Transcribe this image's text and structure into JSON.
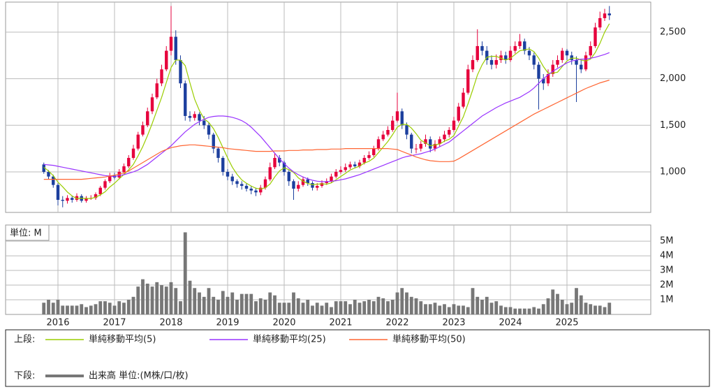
{
  "chart_data": [
    {
      "type": "candlestick",
      "categories": [
        null,
        null,
        null,
        "2016",
        null,
        null,
        null,
        null,
        null,
        null,
        null,
        null,
        null,
        null,
        null,
        "2017",
        null,
        null,
        null,
        null,
        null,
        null,
        null,
        null,
        null,
        null,
        null,
        "2018",
        null,
        null,
        null,
        null,
        null,
        null,
        null,
        null,
        null,
        null,
        null,
        "2019",
        null,
        null,
        null,
        null,
        null,
        null,
        null,
        null,
        null,
        null,
        null,
        "2020",
        null,
        null,
        null,
        null,
        null,
        null,
        null,
        null,
        null,
        null,
        null,
        "2021",
        null,
        null,
        null,
        null,
        null,
        null,
        null,
        null,
        null,
        null,
        null,
        "2022",
        null,
        null,
        null,
        null,
        null,
        null,
        null,
        null,
        null,
        null,
        null,
        "2023",
        null,
        null,
        null,
        null,
        null,
        null,
        null,
        null,
        null,
        null,
        null,
        "2024",
        null,
        null,
        null,
        null,
        null,
        null,
        null,
        null,
        null,
        null,
        null,
        "2025",
        null,
        null,
        null,
        null,
        null,
        null,
        null,
        null,
        null
      ],
      "open": [
        1080,
        1000,
        950,
        860,
        700,
        690,
        720,
        700,
        740,
        690,
        720,
        720,
        760,
        830,
        900,
        960,
        940,
        1000,
        1060,
        1150,
        1250,
        1400,
        1500,
        1650,
        1800,
        1950,
        2100,
        2300,
        2450,
        2200,
        1950,
        1600,
        1580,
        1620,
        1550,
        1500,
        1400,
        1250,
        1150,
        1000,
        950,
        900,
        870,
        850,
        820,
        800,
        780,
        830,
        920,
        1050,
        1150,
        1100,
        1000,
        900,
        820,
        860,
        920,
        880,
        830,
        850,
        880,
        900,
        950,
        1000,
        1020,
        1050,
        1080,
        1060,
        1100,
        1150,
        1180,
        1250,
        1350,
        1400,
        1450,
        1550,
        1650,
        1500,
        1400,
        1250,
        1250,
        1300,
        1350,
        1250,
        1300,
        1350,
        1400,
        1450,
        1550,
        1700,
        1850,
        2100,
        2200,
        2350,
        2300,
        2200,
        2150,
        2200,
        2250,
        2200,
        2300,
        2350,
        2400,
        2300,
        2250,
        2150,
        2000,
        1950,
        2050,
        2150,
        2200,
        2300,
        2250,
        2200,
        2150,
        2100,
        2250,
        2350,
        2550,
        2650,
        2700
      ],
      "high": [
        1100,
        1020,
        970,
        880,
        740,
        750,
        740,
        770,
        760,
        740,
        750,
        780,
        850,
        920,
        990,
        990,
        1030,
        1090,
        1180,
        1290,
        1430,
        1540,
        1690,
        1840,
        2000,
        2150,
        2350,
        2780,
        2520,
        2250,
        1980,
        1650,
        1650,
        1640,
        1600,
        1530,
        1420,
        1270,
        1170,
        1030,
        980,
        920,
        900,
        880,
        850,
        830,
        860,
        950,
        1100,
        1200,
        1180,
        1120,
        1020,
        920,
        900,
        950,
        940,
        900,
        880,
        910,
        930,
        980,
        1030,
        1060,
        1090,
        1110,
        1110,
        1130,
        1180,
        1220,
        1280,
        1380,
        1440,
        1490,
        1600,
        1850,
        1680,
        1530,
        1420,
        1300,
        1330,
        1400,
        1380,
        1340,
        1380,
        1440,
        1480,
        1590,
        1740,
        1900,
        2150,
        2250,
        2530,
        2400,
        2350,
        2250,
        2260,
        2300,
        2290,
        2350,
        2400,
        2480,
        2430,
        2340,
        2280,
        2180,
        2050,
        2100,
        2200,
        2250,
        2330,
        2320,
        2290,
        2240,
        2200,
        2290,
        2400,
        2600,
        2720,
        2750,
        2780
      ],
      "low": [
        980,
        920,
        830,
        640,
        620,
        660,
        670,
        680,
        670,
        670,
        700,
        700,
        740,
        810,
        880,
        920,
        920,
        980,
        1040,
        1130,
        1230,
        1380,
        1480,
        1620,
        1780,
        1920,
        2080,
        2250,
        2150,
        1900,
        1550,
        1540,
        1550,
        1500,
        1460,
        1350,
        1200,
        1100,
        960,
        910,
        860,
        830,
        810,
        790,
        760,
        740,
        750,
        810,
        900,
        1030,
        1060,
        960,
        850,
        700,
        790,
        840,
        850,
        800,
        800,
        830,
        860,
        880,
        930,
        980,
        1000,
        1030,
        1040,
        1040,
        1080,
        1130,
        1160,
        1230,
        1330,
        1380,
        1430,
        1530,
        1460,
        1350,
        1200,
        1200,
        1220,
        1270,
        1210,
        1220,
        1270,
        1320,
        1370,
        1430,
        1530,
        1680,
        1830,
        2070,
        2180,
        2250,
        2150,
        2100,
        2110,
        2170,
        2160,
        2180,
        2270,
        2320,
        2260,
        2200,
        2100,
        1670,
        1880,
        1920,
        2020,
        2120,
        2170,
        2200,
        2150,
        1750,
        2060,
        2080,
        2220,
        2330,
        2520,
        2620,
        2630
      ],
      "close": [
        1000,
        950,
        860,
        700,
        690,
        720,
        700,
        740,
        690,
        720,
        720,
        760,
        830,
        900,
        960,
        940,
        1000,
        1060,
        1150,
        1250,
        1400,
        1500,
        1650,
        1800,
        1950,
        2100,
        2300,
        2450,
        2200,
        1950,
        1600,
        1580,
        1620,
        1550,
        1500,
        1400,
        1250,
        1150,
        1000,
        950,
        900,
        870,
        850,
        820,
        800,
        780,
        830,
        920,
        1050,
        1150,
        1100,
        1000,
        900,
        820,
        860,
        920,
        880,
        830,
        850,
        880,
        900,
        950,
        1000,
        1020,
        1050,
        1080,
        1060,
        1100,
        1150,
        1180,
        1250,
        1350,
        1400,
        1450,
        1550,
        1650,
        1500,
        1400,
        1250,
        1250,
        1300,
        1350,
        1250,
        1300,
        1350,
        1400,
        1450,
        1550,
        1700,
        1850,
        2100,
        2200,
        2350,
        2300,
        2200,
        2150,
        2200,
        2250,
        2200,
        2300,
        2350,
        2400,
        2300,
        2250,
        2150,
        2000,
        1950,
        2050,
        2150,
        2200,
        2300,
        2250,
        2200,
        2150,
        2100,
        2250,
        2350,
        2550,
        2650,
        2700,
        2680
      ],
      "up_color": "#e6003c",
      "down_color": "#1c3f9e",
      "legend_group": "上段:",
      "series": [
        {
          "name": "単純移動平均(5)",
          "color": "#9acd00",
          "values": [
            1050,
            1010,
            960,
            890,
            840,
            784,
            742,
            714,
            718,
            714,
            714,
            728,
            754,
            786,
            838,
            878,
            926,
            972,
            1022,
            1080,
            1172,
            1272,
            1390,
            1520,
            1660,
            1800,
            1960,
            2120,
            2200,
            2200,
            2140,
            1956,
            1780,
            1660,
            1570,
            1530,
            1464,
            1370,
            1260,
            1150,
            1050,
            974,
            914,
            878,
            848,
            824,
            816,
            830,
            870,
            946,
            1010,
            1044,
            1024,
            994,
            936,
            900,
            876,
            862,
            868,
            872,
            868,
            882,
            916,
            950,
            984,
            1020,
            1042,
            1062,
            1094,
            1114,
            1148,
            1206,
            1266,
            1326,
            1400,
            1480,
            1510,
            1510,
            1470,
            1410,
            1340,
            1310,
            1280,
            1290,
            1300,
            1330,
            1350,
            1390,
            1490,
            1590,
            1730,
            1880,
            2040,
            2150,
            2230,
            2240,
            2240,
            2220,
            2200,
            2220,
            2260,
            2300,
            2310,
            2320,
            2290,
            2220,
            2130,
            2060,
            2060,
            2070,
            2130,
            2190,
            2220,
            2220,
            2200,
            2190,
            2210,
            2280,
            2380,
            2500,
            2590
          ]
        },
        {
          "name": "単純移動平均(25)",
          "color": "#9933ff",
          "values": [
            1080,
            1075,
            1070,
            1060,
            1050,
            1040,
            1030,
            1020,
            1010,
            1000,
            990,
            980,
            970,
            960,
            955,
            950,
            960,
            970,
            985,
            1000,
            1020,
            1050,
            1080,
            1120,
            1160,
            1200,
            1240,
            1280,
            1330,
            1380,
            1430,
            1470,
            1510,
            1540,
            1565,
            1585,
            1595,
            1600,
            1600,
            1595,
            1585,
            1570,
            1550,
            1520,
            1480,
            1430,
            1380,
            1320,
            1260,
            1200,
            1140,
            1090,
            1040,
            1000,
            970,
            945,
            925,
            910,
            900,
            895,
            895,
            900,
            905,
            915,
            925,
            940,
            955,
            970,
            990,
            1010,
            1030,
            1050,
            1070,
            1090,
            1110,
            1130,
            1150,
            1165,
            1175,
            1185,
            1195,
            1210,
            1225,
            1245,
            1270,
            1295,
            1320,
            1360,
            1400,
            1440,
            1480,
            1520,
            1560,
            1600,
            1630,
            1660,
            1690,
            1715,
            1740,
            1760,
            1780,
            1800,
            1830,
            1860,
            1900,
            1950,
            2000,
            2040,
            2080,
            2110,
            2140,
            2170,
            2190,
            2200,
            2210,
            2210,
            2220,
            2230,
            2245,
            2260,
            2280
          ]
        },
        {
          "name": "単純移動平均(50)",
          "color": "#ff6633",
          "values": [
            920,
            920,
            920,
            920,
            920,
            920,
            920,
            920,
            920,
            925,
            930,
            935,
            940,
            945,
            955,
            965,
            975,
            990,
            1010,
            1040,
            1070,
            1100,
            1130,
            1160,
            1190,
            1220,
            1240,
            1260,
            1270,
            1280,
            1285,
            1290,
            1290,
            1285,
            1280,
            1275,
            1270,
            1265,
            1260,
            1250,
            1245,
            1240,
            1235,
            1230,
            1225,
            1220,
            1220,
            1220,
            1220,
            1225,
            1225,
            1225,
            1230,
            1230,
            1230,
            1235,
            1235,
            1235,
            1240,
            1240,
            1240,
            1245,
            1245,
            1245,
            1250,
            1250,
            1250,
            1250,
            1250,
            1250,
            1250,
            1250,
            1250,
            1250,
            1245,
            1240,
            1220,
            1200,
            1180,
            1160,
            1145,
            1130,
            1120,
            1115,
            1110,
            1110,
            1110,
            1115,
            1140,
            1170,
            1200,
            1230,
            1260,
            1290,
            1320,
            1350,
            1380,
            1410,
            1440,
            1470,
            1500,
            1530,
            1560,
            1590,
            1620,
            1645,
            1670,
            1695,
            1720,
            1745,
            1770,
            1795,
            1820,
            1845,
            1870,
            1895,
            1915,
            1935,
            1955,
            1970,
            1985
          ]
        }
      ],
      "ylim": [
        565,
        2822
      ],
      "yticks": [
        {
          "value": 1000,
          "label": "1,000"
        },
        {
          "value": 1500,
          "label": "1,500"
        },
        {
          "value": 2000,
          "label": "2,000"
        },
        {
          "value": 2500,
          "label": "2,500"
        }
      ],
      "grid": true
    },
    {
      "type": "bar",
      "unit_label": "単位: M",
      "legend_group": "下段:",
      "series": [
        {
          "name": "出来高 単位:(M株/口/枚)",
          "color": "#777777",
          "values": [
            0.8,
            1.0,
            0.8,
            1.0,
            0.6,
            0.6,
            0.6,
            0.6,
            0.7,
            0.5,
            0.6,
            0.7,
            0.9,
            0.9,
            0.8,
            0.6,
            0.9,
            0.8,
            1.0,
            1.2,
            1.9,
            2.4,
            2.1,
            1.9,
            2.2,
            2.0,
            1.9,
            2.2,
            1.8,
            0.9,
            5.6,
            2.3,
            1.8,
            1.5,
            1.2,
            1.8,
            1.2,
            1.0,
            1.6,
            1.2,
            1.5,
            1.0,
            1.4,
            1.4,
            1.4,
            0.9,
            1.1,
            1.0,
            1.5,
            1.3,
            0.8,
            0.8,
            0.8,
            1.5,
            1.1,
            0.8,
            1.0,
            0.6,
            0.8,
            0.6,
            0.8,
            0.5,
            0.9,
            0.9,
            0.9,
            0.7,
            1.0,
            0.8,
            0.9,
            1.0,
            0.9,
            1.2,
            1.1,
            0.9,
            1.0,
            1.5,
            1.8,
            1.5,
            1.2,
            1.1,
            0.9,
            0.7,
            0.7,
            0.8,
            0.6,
            0.7,
            0.5,
            0.7,
            0.6,
            0.6,
            0.5,
            1.8,
            1.2,
            1.0,
            1.2,
            0.8,
            0.9,
            0.6,
            0.5,
            0.5,
            0.4,
            0.4,
            0.4,
            0.4,
            0.5,
            0.4,
            0.7,
            1.1,
            1.7,
            1.4,
            1.0,
            0.7,
            0.8,
            1.8,
            1.3,
            0.8,
            0.7,
            0.6,
            0.6,
            0.5,
            0.8
          ]
        }
      ],
      "ylim": [
        0,
        6.1
      ],
      "yticks": [
        {
          "value": 1,
          "label": "1M"
        },
        {
          "value": 2,
          "label": "2M"
        },
        {
          "value": 3,
          "label": "3M"
        },
        {
          "value": 4,
          "label": "4M"
        },
        {
          "value": 5,
          "label": "5M"
        }
      ],
      "grid": true
    }
  ]
}
